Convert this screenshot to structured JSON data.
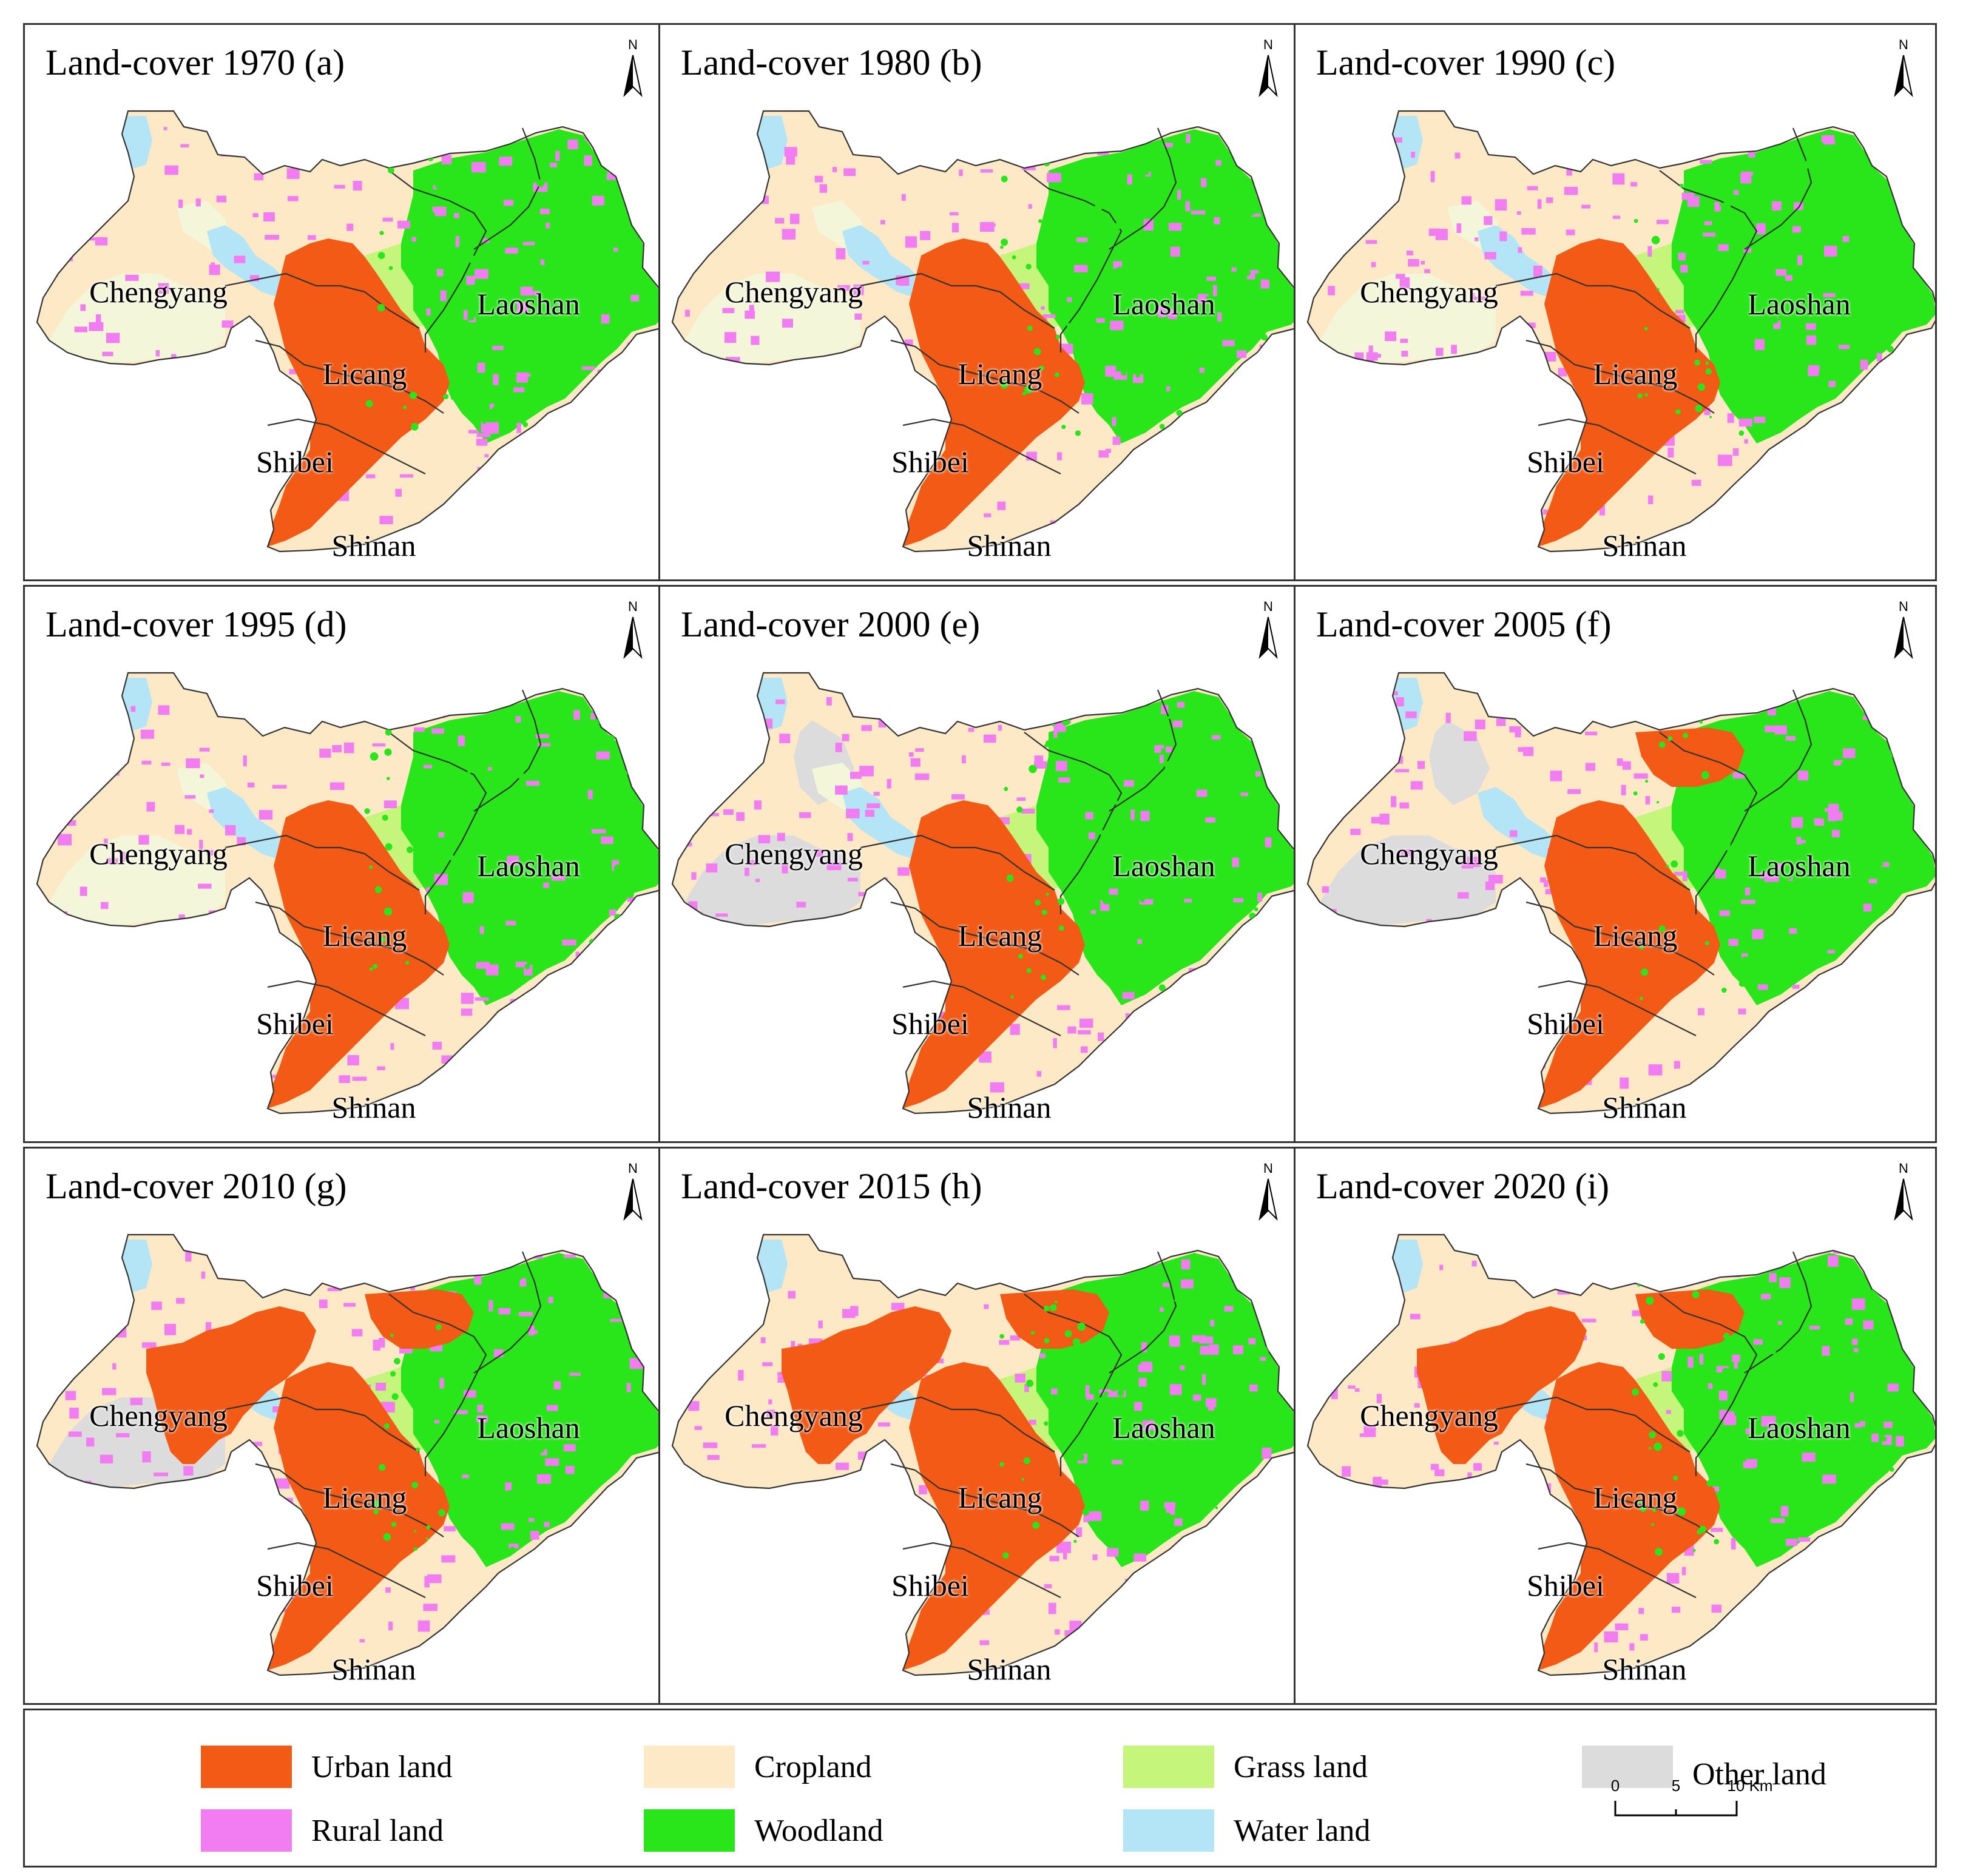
{
  "colors": {
    "urban": "#f25a16",
    "rural": "#f27cf2",
    "cropland": "#fde9c5",
    "woodland": "#28e61a",
    "grass": "#c5f57a",
    "water": "#b3e5f7",
    "other": "#dcdcdc",
    "reclaimed": "#f3f6d8",
    "boundary": "#333333"
  },
  "panels": [
    {
      "title": "Land-cover 1970 (a)",
      "north": "N",
      "urban": 0.18,
      "rural": 0.25,
      "other": 0.0
    },
    {
      "title": "Land-cover 1980 (b)",
      "north": "N",
      "urban": 0.22,
      "rural": 0.27,
      "other": 0.0
    },
    {
      "title": "Land-cover 1990 (c)",
      "north": "N",
      "urban": 0.26,
      "rural": 0.28,
      "other": 0.0
    },
    {
      "title": "Land-cover 1995 (d)",
      "north": "N",
      "urban": 0.3,
      "rural": 0.3,
      "other": 0.0
    },
    {
      "title": "Land-cover 2000 (e)",
      "north": "N",
      "urban": 0.34,
      "rural": 0.3,
      "other": 0.5
    },
    {
      "title": "Land-cover 2005 (f)",
      "north": "N",
      "urban": 0.44,
      "rural": 0.32,
      "other": 1.0
    },
    {
      "title": "Land-cover 2010 (g)",
      "north": "N",
      "urban": 0.72,
      "rural": 0.34,
      "other": 1.0
    },
    {
      "title": "Land-cover 2015 (h)",
      "north": "N",
      "urban": 0.78,
      "rural": 0.34,
      "other": 0.0
    },
    {
      "title": "Land-cover 2020 (i)",
      "north": "N",
      "urban": 0.84,
      "rural": 0.36,
      "other": 0.0
    }
  ],
  "districts": [
    "Chengyang",
    "Laoshan",
    "Licang",
    "Shibei",
    "Shinan"
  ],
  "legend": [
    {
      "label": "Urban land",
      "color": "#f25a16"
    },
    {
      "label": "Rural land",
      "color": "#f27cf2"
    },
    {
      "label": "Cropland",
      "color": "#fde9c5"
    },
    {
      "label": "Woodland",
      "color": "#28e61a"
    },
    {
      "label": "Grass land",
      "color": "#c5f57a"
    },
    {
      "label": "Water land",
      "color": "#b3e5f7"
    },
    {
      "label": "Other land",
      "color": "#dcdcdc"
    }
  ],
  "scale": {
    "ticks": [
      "0",
      "5",
      "10 Km"
    ]
  }
}
